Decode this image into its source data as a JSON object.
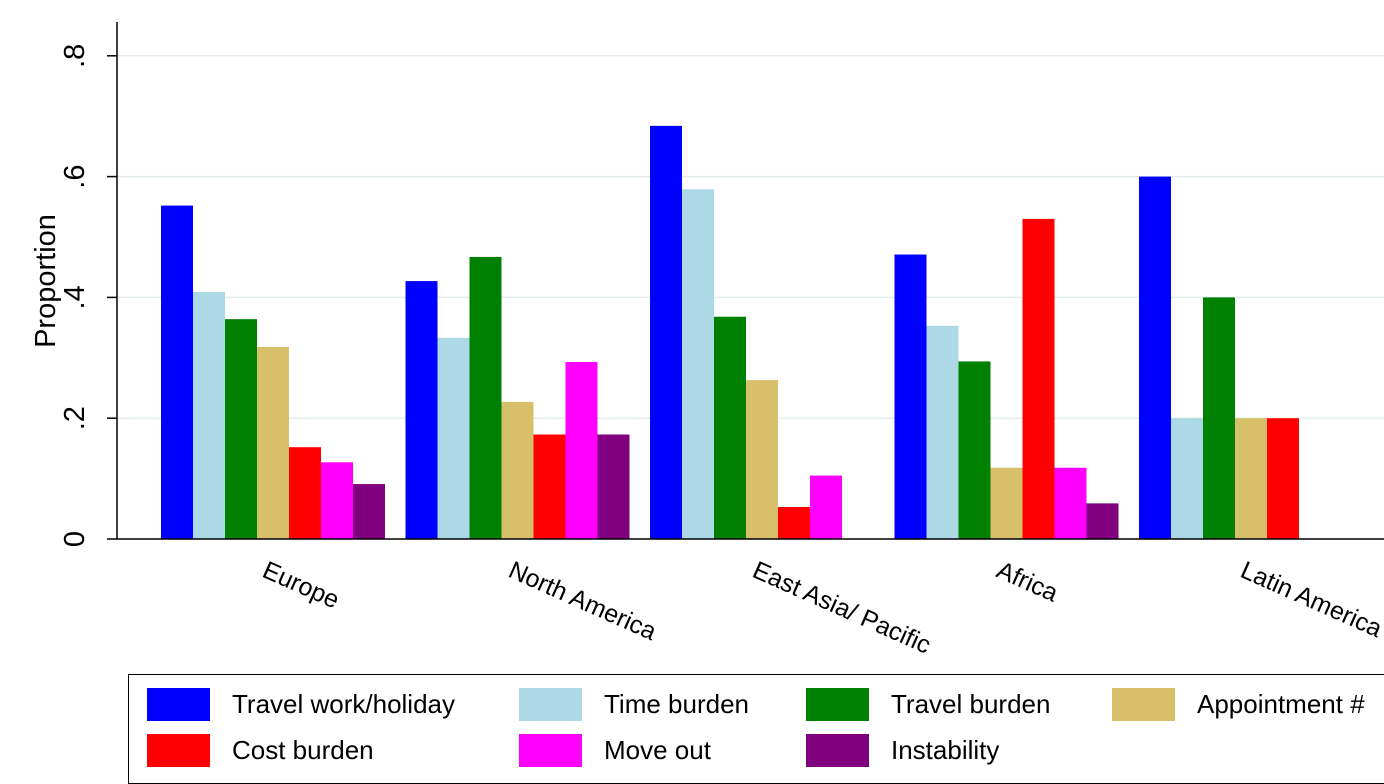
{
  "chart_data": {
    "type": "bar",
    "ylabel": "Proportion",
    "xlabel": "",
    "ylim": [
      0,
      0.85
    ],
    "y_ticks": [
      {
        "value": 0,
        "label": "0"
      },
      {
        "value": 0.2,
        "label": ".2"
      },
      {
        "value": 0.4,
        "label": ".4"
      },
      {
        "value": 0.6,
        "label": ".6"
      },
      {
        "value": 0.8,
        "label": ".8"
      }
    ],
    "grid": true,
    "legend_position": "bottom",
    "categories": [
      "Europe",
      "North America",
      "East Asia/ Pacific",
      "Africa",
      "Latin America"
    ],
    "series": [
      {
        "name": "Travel work/holiday",
        "color": "#0000ff",
        "values": [
          0.552,
          0.427,
          0.684,
          0.471,
          0.6
        ]
      },
      {
        "name": "Time burden",
        "color": "#add8e6",
        "values": [
          0.409,
          0.333,
          0.579,
          0.353,
          0.2
        ]
      },
      {
        "name": "Travel burden",
        "color": "#008000",
        "values": [
          0.364,
          0.467,
          0.368,
          0.294,
          0.4
        ]
      },
      {
        "name": "Appointment #",
        "color": "#d8bf6a",
        "values": [
          0.318,
          0.227,
          0.263,
          0.118,
          0.2
        ]
      },
      {
        "name": "Cost burden",
        "color": "#ff0000",
        "values": [
          0.152,
          0.173,
          0.053,
          0.53,
          0.2
        ]
      },
      {
        "name": "Move out",
        "color": "#ff00ff",
        "values": [
          0.127,
          0.293,
          0.105,
          0.118,
          0
        ]
      },
      {
        "name": "Instability",
        "color": "#800080",
        "values": [
          0.091,
          0.173,
          0,
          0.059,
          0
        ]
      }
    ]
  }
}
